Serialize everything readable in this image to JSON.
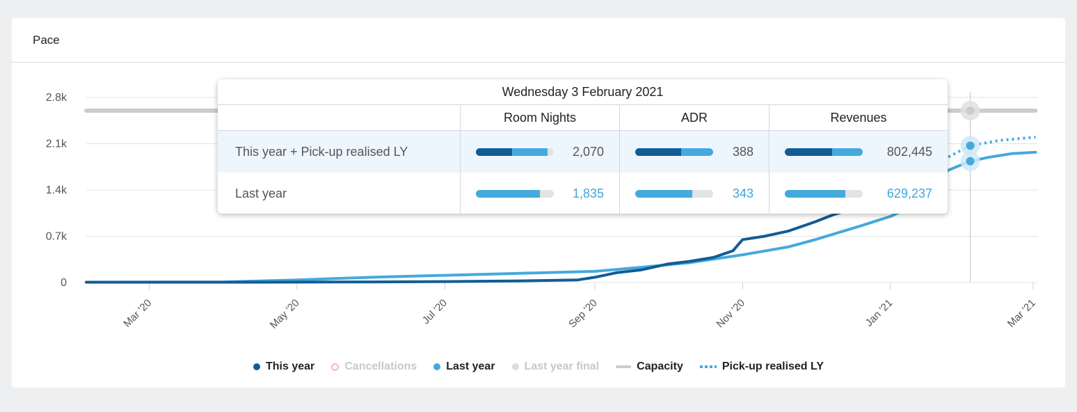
{
  "card": {
    "title": "Pace"
  },
  "colors": {
    "this_year": "#125c96",
    "last_year": "#44a9dd",
    "capacity": "#cccccc",
    "cancellations": "#f2b8b8",
    "last_year_final": "#dddddd"
  },
  "legend": [
    {
      "label": "This year",
      "symbol": "dot",
      "color": "#125c96",
      "active": true
    },
    {
      "label": "Cancellations",
      "symbol": "cancel-dot",
      "color": "#f2b8b8",
      "active": false
    },
    {
      "label": "Last year",
      "symbol": "dot",
      "color": "#44a9dd",
      "active": true
    },
    {
      "label": "Last year final",
      "symbol": "dot",
      "color": "#dddddd",
      "active": false
    },
    {
      "label": "Capacity",
      "symbol": "dash",
      "color": "#cccccc",
      "active": true
    },
    {
      "label": "Pick-up realised LY",
      "symbol": "dotted",
      "color": "#44a9dd",
      "active": true
    }
  ],
  "tooltip": {
    "title": "Wednesday 3 February 2021",
    "headers": [
      "Room Nights",
      "ADR",
      "Revenues"
    ],
    "rows": [
      {
        "label": "This year + Pick-up realised LY",
        "highlight": true,
        "cells": [
          {
            "value": "2,070",
            "this_year_fraction": 0.46,
            "pickup_fraction": 0.46
          },
          {
            "value": "388",
            "this_year_fraction": 0.59,
            "pickup_fraction": 0.41
          },
          {
            "value": "802,445",
            "this_year_fraction": 0.61,
            "pickup_fraction": 0.39
          }
        ]
      },
      {
        "label": "Last year",
        "highlight": false,
        "cells": [
          {
            "value": "1,835",
            "last_year_fraction": 0.82
          },
          {
            "value": "343",
            "last_year_fraction": 0.73
          },
          {
            "value": "629,237",
            "last_year_fraction": 0.78
          }
        ]
      }
    ]
  },
  "chart_data": {
    "type": "line",
    "x_type": "date",
    "x_ticks": [
      "Mar '20",
      "May '20",
      "Jul '20",
      "Sep '20",
      "Nov '20",
      "Jan '21",
      "Mar '21"
    ],
    "x_tick_dates": [
      "2020-03-01",
      "2020-05-01",
      "2020-07-01",
      "2020-09-01",
      "2020-11-01",
      "2021-01-01",
      "2021-03-01"
    ],
    "xlim": [
      "2020-02-04",
      "2021-03-03"
    ],
    "y_ticks": [
      "0",
      "0.7k",
      "1.4k",
      "2.1k",
      "2.8k"
    ],
    "ylim": [
      0,
      2800
    ],
    "grid": true,
    "legend_position": "bottom-center",
    "crosshair_date": "2021-02-03",
    "series": [
      {
        "name": "This year",
        "color": "#125c96",
        "style": "solid",
        "points": [
          [
            "2020-02-04",
            5
          ],
          [
            "2020-04-15",
            5
          ],
          [
            "2020-06-01",
            10
          ],
          [
            "2020-07-01",
            15
          ],
          [
            "2020-08-01",
            25
          ],
          [
            "2020-08-25",
            40
          ],
          [
            "2020-09-01",
            80
          ],
          [
            "2020-09-10",
            150
          ],
          [
            "2020-09-20",
            190
          ],
          [
            "2020-10-01",
            280
          ],
          [
            "2020-10-10",
            320
          ],
          [
            "2020-10-20",
            380
          ],
          [
            "2020-10-28",
            480
          ],
          [
            "2020-11-01",
            650
          ],
          [
            "2020-11-10",
            700
          ],
          [
            "2020-11-20",
            780
          ],
          [
            "2020-12-01",
            920
          ],
          [
            "2020-12-08",
            1020
          ],
          [
            "2020-12-15",
            1100
          ]
        ]
      },
      {
        "name": "Last year",
        "color": "#44a9dd",
        "style": "solid",
        "points": [
          [
            "2020-02-04",
            5
          ],
          [
            "2020-04-01",
            10
          ],
          [
            "2020-05-01",
            40
          ],
          [
            "2020-06-01",
            80
          ],
          [
            "2020-07-01",
            110
          ],
          [
            "2020-08-01",
            140
          ],
          [
            "2020-09-01",
            170
          ],
          [
            "2020-09-20",
            230
          ],
          [
            "2020-10-10",
            300
          ],
          [
            "2020-11-01",
            420
          ],
          [
            "2020-11-20",
            540
          ],
          [
            "2020-12-01",
            650
          ],
          [
            "2020-12-20",
            860
          ],
          [
            "2021-01-01",
            1000
          ],
          [
            "2021-01-10",
            1150
          ],
          [
            "2021-01-15",
            1300
          ],
          [
            "2021-01-20",
            1550
          ],
          [
            "2021-01-25",
            1700
          ],
          [
            "2021-02-03",
            1835
          ],
          [
            "2021-02-10",
            1890
          ],
          [
            "2021-02-20",
            1950
          ],
          [
            "2021-03-02",
            1970
          ]
        ]
      },
      {
        "name": "Pick-up realised LY",
        "color": "#44a9dd",
        "style": "dotted",
        "points": [
          [
            "2021-01-25",
            1900
          ],
          [
            "2021-02-03",
            2070
          ],
          [
            "2021-02-15",
            2150
          ],
          [
            "2021-03-02",
            2200
          ]
        ]
      },
      {
        "name": "Capacity",
        "color": "#cccccc",
        "style": "thick",
        "points": [
          [
            "2020-02-04",
            2600
          ],
          [
            "2021-03-02",
            2600
          ]
        ]
      }
    ]
  }
}
